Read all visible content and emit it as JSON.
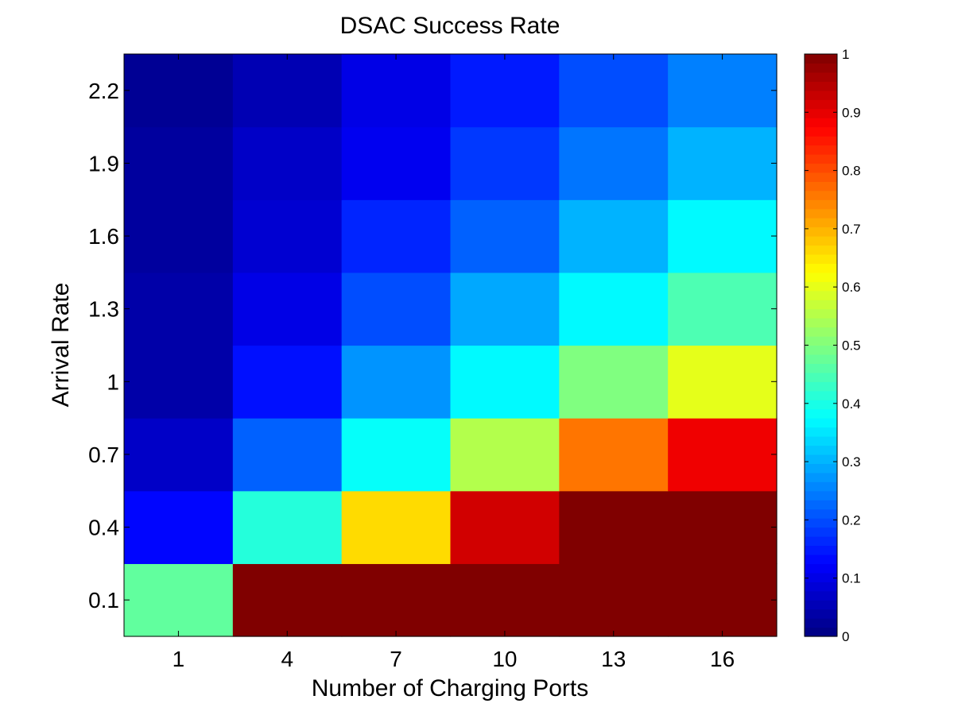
{
  "chart_data": {
    "type": "heatmap",
    "title": "DSAC Success Rate",
    "xlabel": "Number of Charging Ports",
    "ylabel": "Arrival Rate",
    "x_categories": [
      "1",
      "4",
      "7",
      "10",
      "13",
      "16"
    ],
    "y_categories": [
      "0.1",
      "0.4",
      "0.7",
      "1",
      "1.3",
      "1.6",
      "1.9",
      "2.2"
    ],
    "values": [
      [
        0.47,
        1.0,
        1.0,
        1.0,
        1.0,
        1.0
      ],
      [
        0.13,
        0.41,
        0.66,
        0.92,
        1.0,
        1.0
      ],
      [
        0.07,
        0.22,
        0.38,
        0.55,
        0.76,
        0.89
      ],
      [
        0.04,
        0.14,
        0.27,
        0.37,
        0.5,
        0.6
      ],
      [
        0.04,
        0.1,
        0.2,
        0.29,
        0.37,
        0.45
      ],
      [
        0.03,
        0.08,
        0.16,
        0.22,
        0.3,
        0.37
      ],
      [
        0.03,
        0.07,
        0.11,
        0.18,
        0.24,
        0.3
      ],
      [
        0.02,
        0.05,
        0.1,
        0.15,
        0.2,
        0.25
      ]
    ],
    "colormap": "jet",
    "colorbar": {
      "range": [
        0,
        1
      ],
      "ticks": [
        "0",
        "0.1",
        "0.2",
        "0.3",
        "0.4",
        "0.5",
        "0.6",
        "0.7",
        "0.8",
        "0.9",
        "1"
      ]
    },
    "grid": false,
    "legend": "none"
  }
}
